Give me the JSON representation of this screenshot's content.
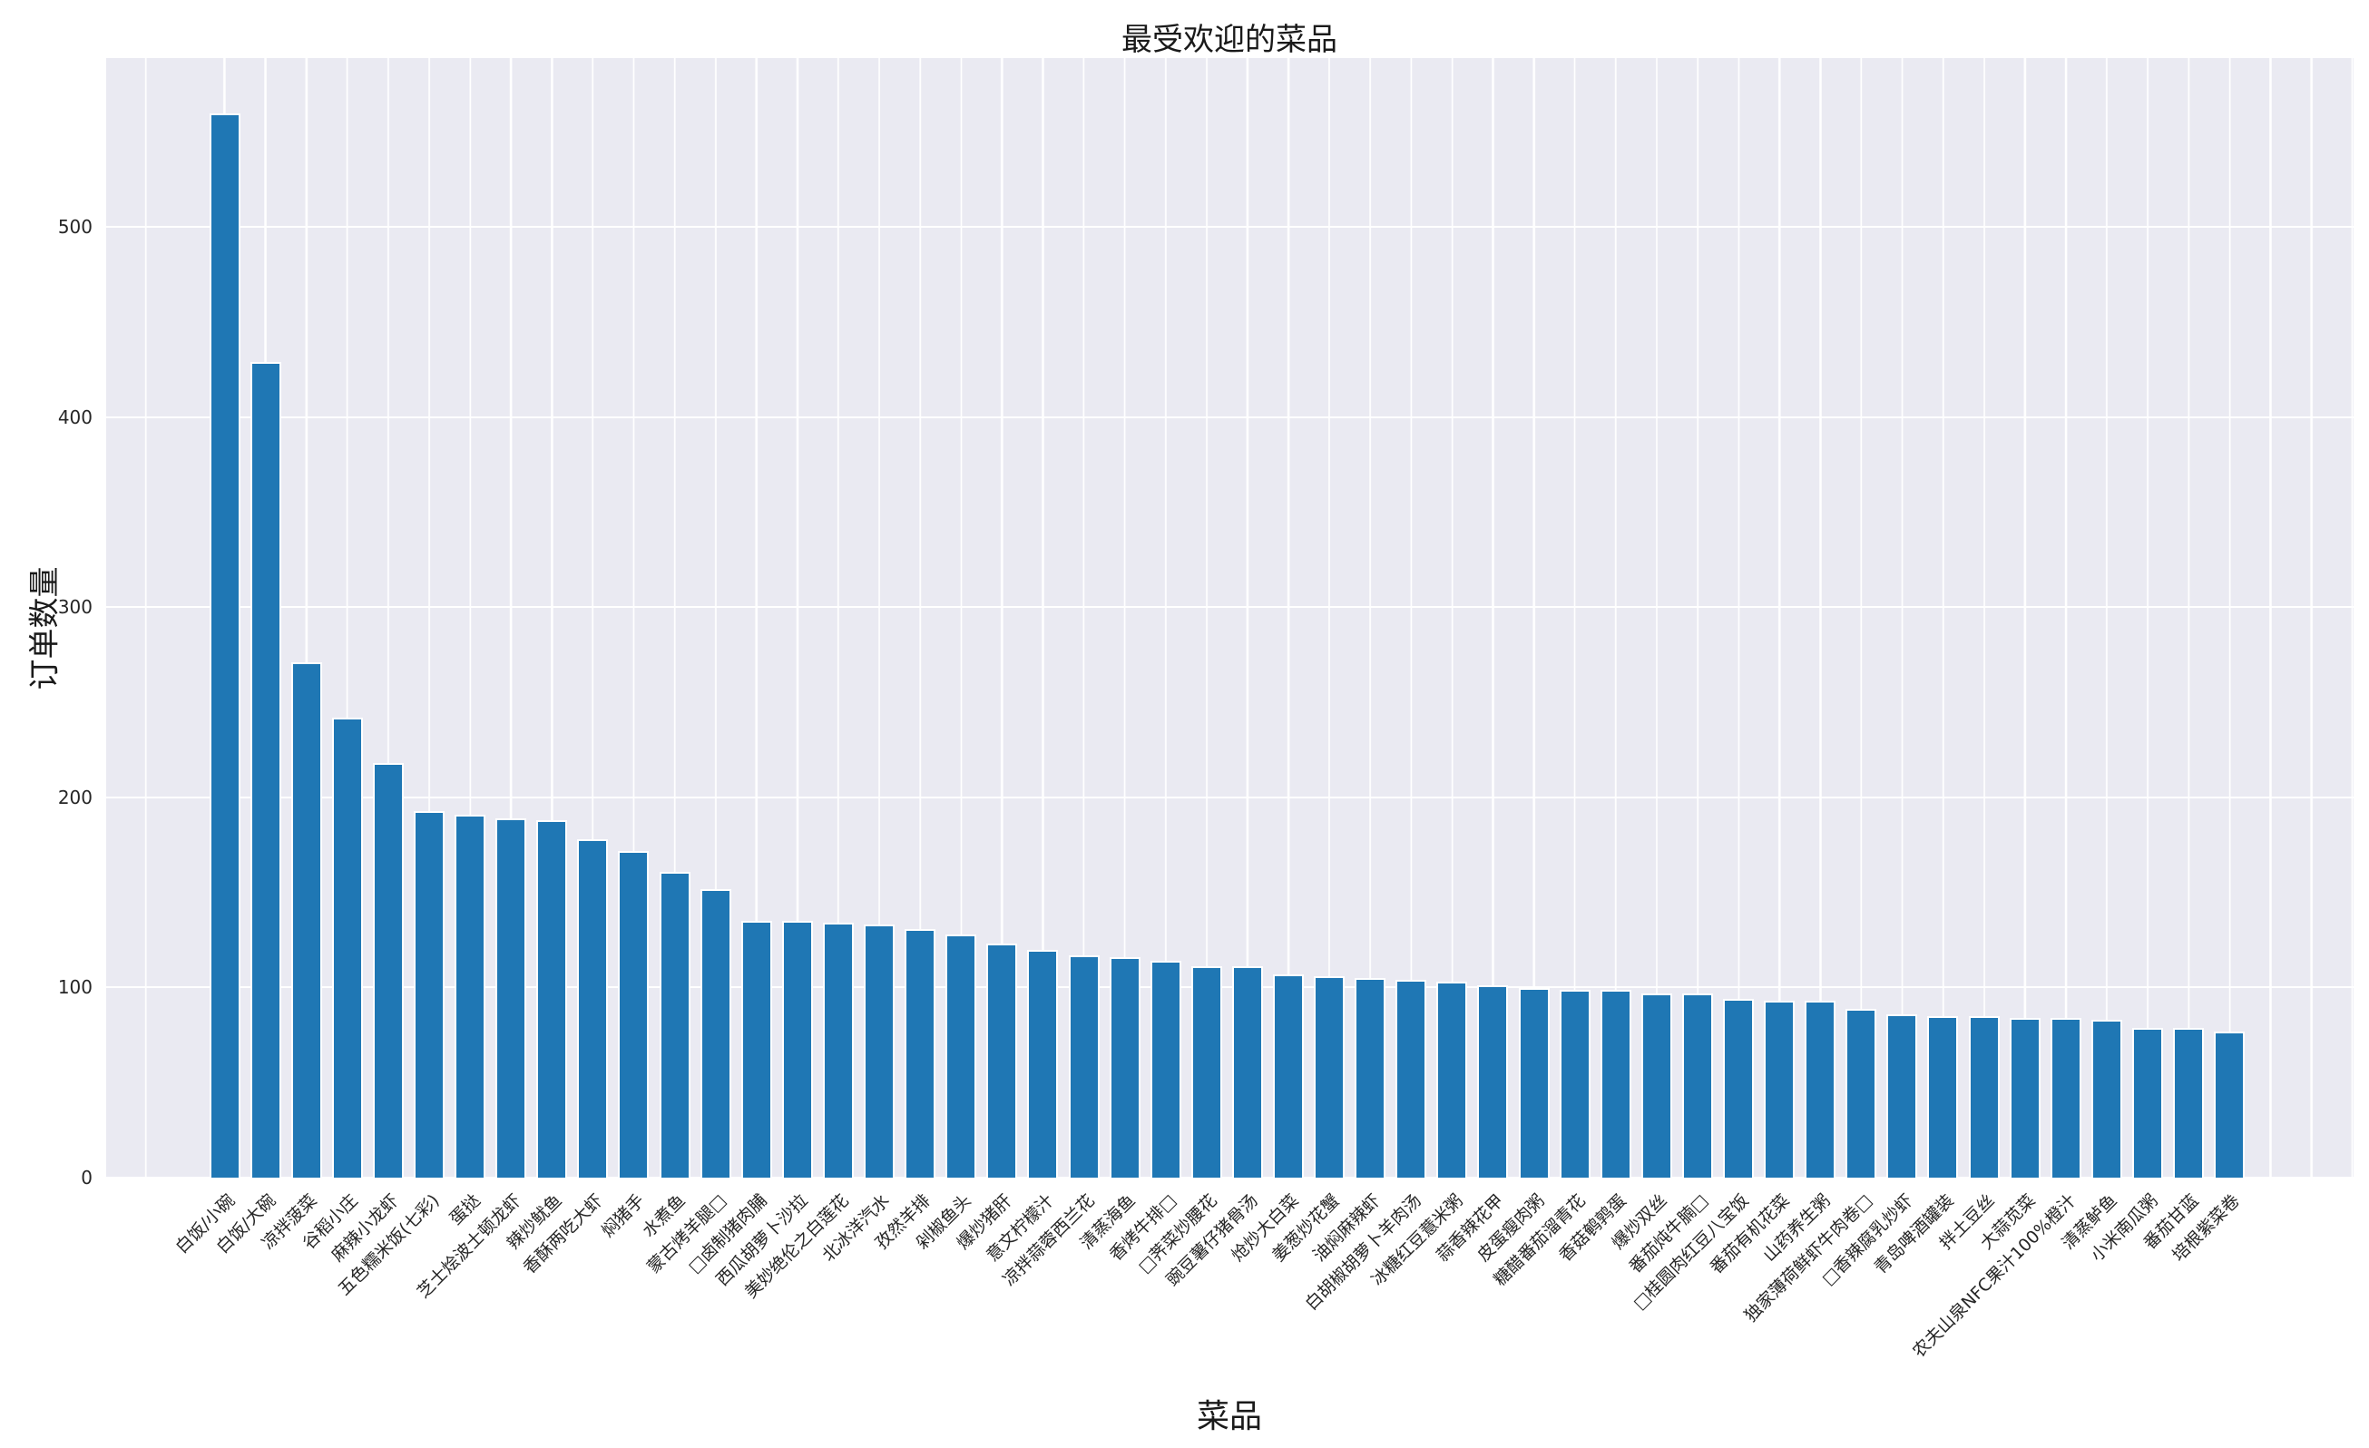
{
  "chart_data": {
    "type": "bar",
    "title": "最受欢迎的菜品",
    "xlabel": "菜品",
    "ylabel": "订单数量",
    "legend": null,
    "grid": true,
    "ylim": [
      0,
      589
    ],
    "yticks": [
      0,
      100,
      200,
      300,
      400,
      500
    ],
    "bar_color": "#1f77b4",
    "bar_edge_color": "#ffffff",
    "plot_bg_color": "#eaeaf2",
    "grid_color": "#ffffff",
    "text_color": "#262626",
    "categories": [
      "白饭/小碗",
      "白饭/大碗",
      "凉拌菠菜",
      "谷稻小庄",
      "麻辣小龙虾",
      "五色糯米饭(七彩)",
      "蛋挞",
      "芝士烩波士顿龙虾",
      "辣炒鱿鱼",
      "香酥两吃大虾",
      "焖猪手",
      "水煮鱼",
      "蒙古烤羊腿□",
      "□卤制猪肉脯",
      "西瓜胡萝卜沙拉",
      "美妙绝伦之白莲花",
      "北冰洋汽水",
      "孜然羊排",
      "剁椒鱼头",
      "爆炒猪肝",
      "意文柠檬汁",
      "凉拌蒜蓉西兰花",
      "清蒸海鱼",
      "香烤牛排□",
      "□荠菜炒腰花",
      "豌豆薯仔猪骨汤",
      "炝炒大白菜",
      "姜葱炒花蟹",
      "油焖麻辣虾",
      "白胡椒胡萝卜羊肉汤",
      "冰糖红豆薏米粥",
      "蒜香辣花甲",
      "皮蛋瘦肉粥",
      "糖醋番茄溜青花",
      "香菇鹌鹑蛋",
      "爆炒双丝",
      "番茄炖牛腩□",
      "□桂圆肉红豆八宝饭",
      "番茄有机花菜",
      "山药养生粥",
      "独家薄荷鲜虾牛肉卷□",
      "□香辣腐乳炒虾",
      "青岛啤酒罐装",
      "拌土豆丝",
      "大蒜苋菜",
      "农夫山泉NFC果汁100%橙汁",
      "清蒸鲈鱼",
      "小米南瓜粥",
      "番茄甘蓝",
      "培根紫菜卷"
    ],
    "values": [
      560,
      429,
      271,
      242,
      218,
      193,
      191,
      189,
      188,
      178,
      172,
      161,
      152,
      135,
      135,
      134,
      133,
      131,
      128,
      123,
      120,
      117,
      116,
      114,
      111,
      111,
      107,
      106,
      105,
      104,
      103,
      101,
      100,
      99,
      99,
      97,
      97,
      94,
      93,
      93,
      89,
      86,
      85,
      85,
      84,
      84,
      83,
      79,
      79,
      77
    ]
  }
}
